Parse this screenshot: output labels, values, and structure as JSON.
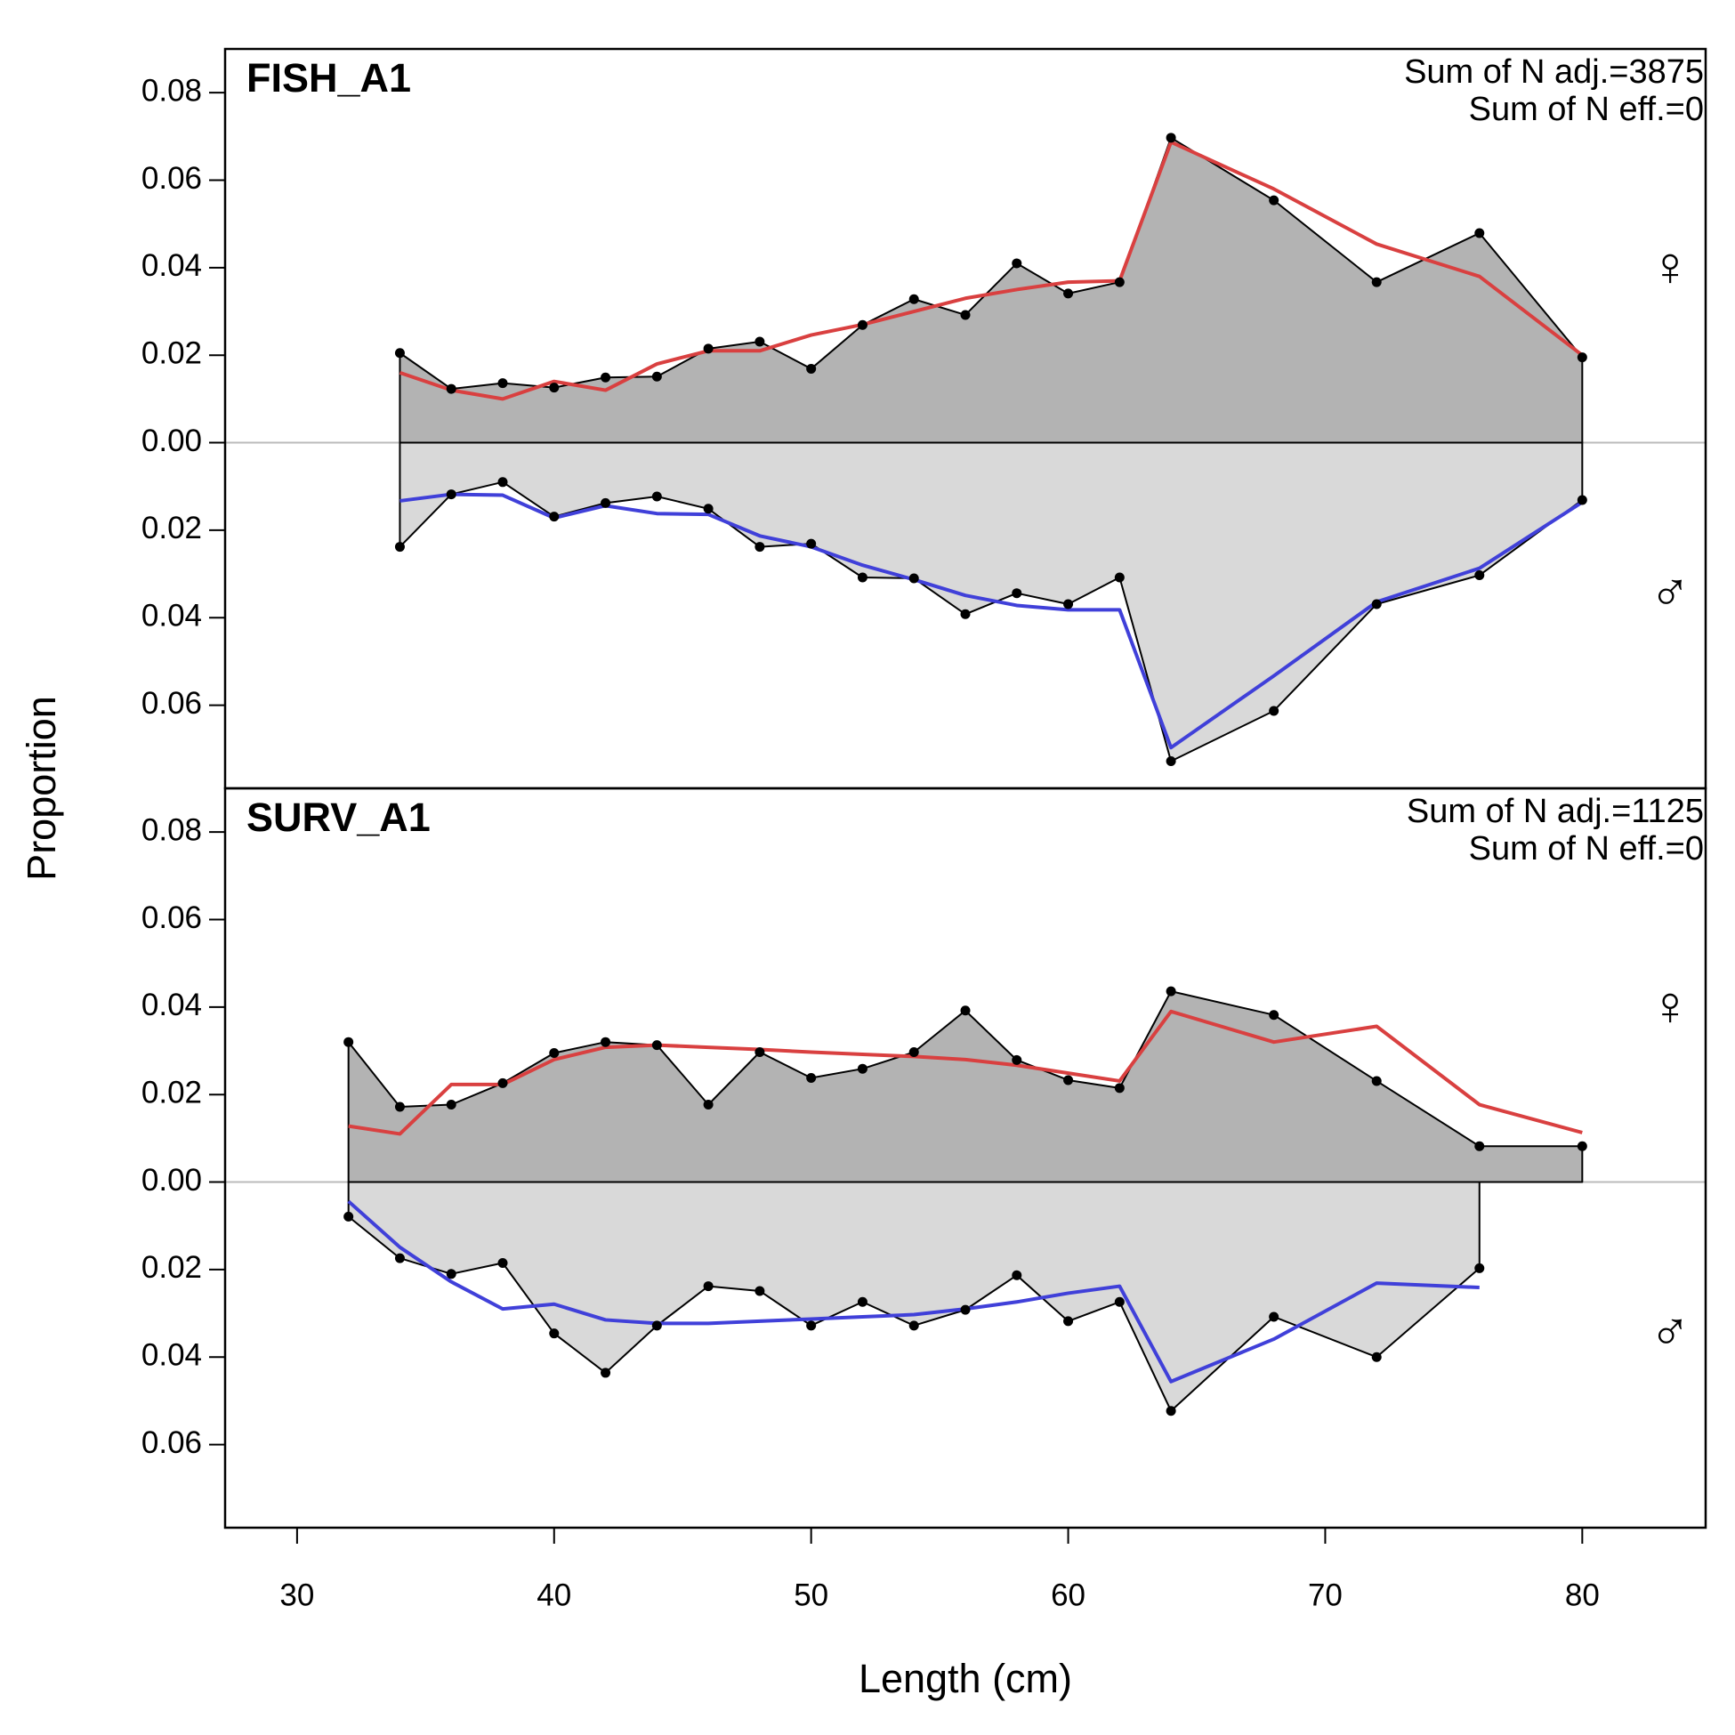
{
  "chart_data": {
    "type": "line",
    "xlabel": "Length (cm)",
    "ylabel": "Proportion",
    "xlim": [
      27.2,
      84.8
    ],
    "xticks": [
      30,
      40,
      50,
      60,
      70,
      80
    ],
    "ylim": [
      -0.079,
      0.09
    ],
    "yticks": [
      0.08,
      0.06,
      0.04,
      0.02,
      {
        "value": 0,
        "label": "0.00"
      },
      {
        "value": -0.02,
        "label": "0.02"
      },
      {
        "value": -0.04,
        "label": "0.04"
      },
      {
        "value": -0.06,
        "label": "0.06"
      }
    ],
    "panels": [
      {
        "title": "FISH_A1",
        "annotations": [
          "Sum of N adj.=3875",
          "Sum of N eff.=0"
        ],
        "sexes": [
          {
            "symbol": "♀",
            "symbol_color": "#cc0000",
            "color": "#d94040",
            "fill": "#b3b3b3",
            "x": [
              34,
              36,
              38,
              40,
              42,
              44,
              46,
              48,
              50,
              52,
              54,
              56,
              58,
              60,
              62,
              64,
              68,
              72,
              76,
              80
            ],
            "observed": [
              0.0205,
              0.0123,
              0.0136,
              0.0126,
              0.0149,
              0.0151,
              0.0215,
              0.0231,
              0.0169,
              0.0269,
              0.0328,
              0.0292,
              0.041,
              0.0341,
              0.0367,
              0.0697,
              0.0554,
              0.0367,
              0.0479,
              0.0195
            ],
            "expected": [
              0.016,
              0.012,
              0.01,
              0.014,
              0.012,
              0.018,
              0.021,
              0.021,
              0.0246,
              0.027,
              0.03,
              0.033,
              0.035,
              0.0367,
              0.037,
              0.0687,
              0.058,
              0.0454,
              0.038,
              0.02
            ]
          },
          {
            "symbol": "♂",
            "symbol_color": "#0000cc",
            "color": "#4040d9",
            "fill": "#d9d9d9",
            "x": [
              34,
              36,
              38,
              40,
              42,
              44,
              46,
              48,
              50,
              52,
              54,
              56,
              58,
              60,
              62,
              64,
              68,
              72,
              76,
              80
            ],
            "observed": [
              -0.0238,
              -0.0118,
              -0.009,
              -0.0169,
              -0.0138,
              -0.0123,
              -0.0151,
              -0.0238,
              -0.0231,
              -0.0308,
              -0.031,
              -0.0392,
              -0.0344,
              -0.0369,
              -0.0308,
              -0.0728,
              -0.0613,
              -0.0369,
              -0.0303,
              -0.0131
            ],
            "expected": [
              -0.0133,
              -0.0118,
              -0.012,
              -0.0172,
              -0.0144,
              -0.0162,
              -0.0164,
              -0.0213,
              -0.0238,
              -0.028,
              -0.0313,
              -0.0349,
              -0.0372,
              -0.0382,
              -0.0382,
              -0.0697,
              -0.0533,
              -0.0364,
              -0.0287,
              -0.0136
            ]
          }
        ]
      },
      {
        "title": "SURV_A1",
        "annotations": [
          "Sum of N adj.=1125",
          "Sum of N eff.=0"
        ],
        "sexes": [
          {
            "symbol": "♀",
            "symbol_color": "#cc0000",
            "color": "#d94040",
            "fill": "#b3b3b3",
            "x": [
              32,
              34,
              36,
              38,
              40,
              42,
              44,
              46,
              48,
              50,
              52,
              54,
              56,
              58,
              60,
              62,
              64,
              68,
              72,
              76,
              80
            ],
            "observed": [
              0.032,
              0.0172,
              0.0177,
              0.0226,
              0.0295,
              0.032,
              0.0313,
              0.0177,
              0.0297,
              0.0238,
              0.0259,
              0.0297,
              0.0392,
              0.0279,
              0.0233,
              0.0215,
              0.0436,
              0.0382,
              0.0231,
              0.0082,
              0.0082
            ],
            "expected": [
              0.0128,
              0.011,
              0.0223,
              0.0223,
              0.028,
              0.0308,
              0.0313,
              0.0308,
              0.0303,
              0.0297,
              0.0292,
              0.0287,
              0.028,
              0.0267,
              0.0249,
              0.0231,
              0.039,
              0.032,
              0.0356,
              0.0177,
              0.0113
            ]
          },
          {
            "symbol": "♂",
            "symbol_color": "#0000cc",
            "color": "#4040d9",
            "fill": "#d9d9d9",
            "x": [
              32,
              34,
              36,
              38,
              40,
              42,
              44,
              46,
              48,
              50,
              52,
              54,
              56,
              58,
              60,
              62,
              64,
              68,
              72,
              76
            ],
            "observed": [
              -0.0079,
              -0.0174,
              -0.021,
              -0.0185,
              -0.0346,
              -0.0436,
              -0.0328,
              -0.0238,
              -0.0249,
              -0.0328,
              -0.0274,
              -0.0328,
              -0.0292,
              -0.0213,
              -0.0318,
              -0.0274,
              -0.0523,
              -0.0308,
              -0.04,
              -0.0197
            ],
            "expected": [
              -0.0044,
              -0.0149,
              -0.0228,
              -0.029,
              -0.0279,
              -0.0315,
              -0.0323,
              -0.0323,
              -0.0318,
              -0.0313,
              -0.0308,
              -0.0303,
              -0.029,
              -0.0274,
              -0.0254,
              -0.0238,
              -0.0456,
              -0.0359,
              -0.0231,
              -0.0241
            ]
          }
        ]
      }
    ]
  }
}
